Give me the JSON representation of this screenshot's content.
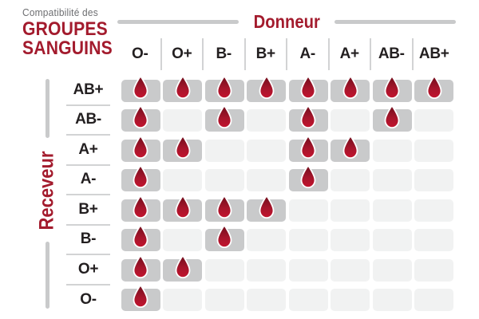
{
  "title": {
    "eyebrow": "Compatibilité des",
    "line1": "GROUPES",
    "line2": "SANGUINS"
  },
  "axes": {
    "donor_label": "Donneur",
    "recipient_label": "Receveur"
  },
  "colors": {
    "accent_red": "#a31b2d",
    "drop_top": "#6f0e1c",
    "drop_bottom": "#c2142e",
    "cell_filled": "#c9cacb",
    "cell_empty": "#f1f2f2",
    "text_dark": "#231f20",
    "text_gray": "#6d6e71",
    "divider_gray": "#d2d3d4"
  },
  "chart_data": {
    "type": "heatmap",
    "title": "Compatibilité des groupes sanguins",
    "x_axis_label": "Donneur",
    "y_axis_label": "Receveur",
    "columns": [
      "O-",
      "O+",
      "B-",
      "B+",
      "A-",
      "A+",
      "AB-",
      "AB+"
    ],
    "rows": [
      "AB+",
      "AB-",
      "A+",
      "A-",
      "B+",
      "B-",
      "O+",
      "O-"
    ],
    "compatible_marker": "blood-drop-icon",
    "matrix": [
      [
        1,
        1,
        1,
        1,
        1,
        1,
        1,
        1
      ],
      [
        1,
        0,
        1,
        0,
        1,
        0,
        1,
        0
      ],
      [
        1,
        1,
        0,
        0,
        1,
        1,
        0,
        0
      ],
      [
        1,
        0,
        0,
        0,
        1,
        0,
        0,
        0
      ],
      [
        1,
        1,
        1,
        1,
        0,
        0,
        0,
        0
      ],
      [
        1,
        0,
        1,
        0,
        0,
        0,
        0,
        0
      ],
      [
        1,
        1,
        0,
        0,
        0,
        0,
        0,
        0
      ],
      [
        1,
        0,
        0,
        0,
        0,
        0,
        0,
        0
      ]
    ]
  }
}
